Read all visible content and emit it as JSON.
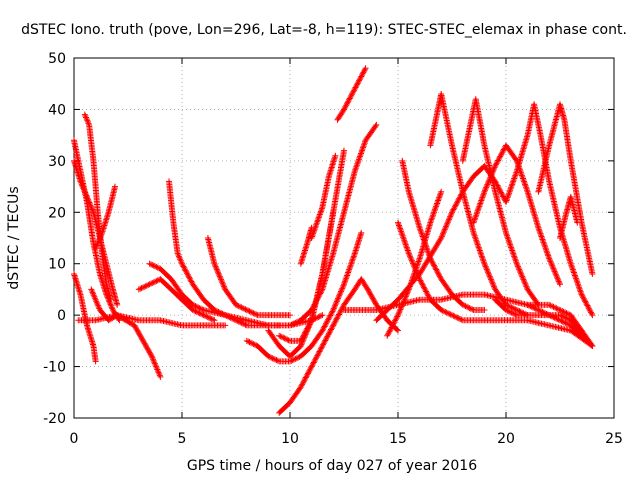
{
  "chart_data": {
    "type": "scatter",
    "title": "dSTEC Iono. truth (pove, Lon=296, Lat=-8, h=119): STEC-STEC_elemax in phase cont.",
    "xlabel": "GPS time / hours of day 027 of year 2016",
    "ylabel": "dSTEC  / TECUs",
    "xlim": [
      0,
      25
    ],
    "ylim": [
      -20,
      50
    ],
    "xticks": [
      0,
      5,
      10,
      15,
      20,
      25
    ],
    "yticks": [
      -20,
      -10,
      0,
      10,
      20,
      30,
      40,
      50
    ],
    "x_tick_labels": [
      "0",
      "5",
      "10",
      "15",
      "20",
      "25"
    ],
    "y_tick_labels": [
      "-20",
      "-10",
      "0",
      "10",
      "20",
      "30",
      "40",
      "50"
    ],
    "grid": true,
    "marker": "plus",
    "color": "#ff0000",
    "series": [
      {
        "x": [
          0.0,
          0.3,
          0.6,
          0.9,
          1.2,
          1.5,
          1.8,
          2.1
        ],
        "y": [
          34,
          28,
          22,
          14,
          8,
          4,
          1,
          -1
        ]
      },
      {
        "x": [
          0.0,
          0.3,
          0.6,
          0.9,
          1.0
        ],
        "y": [
          8,
          4,
          -2,
          -6,
          -9
        ]
      },
      {
        "x": [
          0.5,
          0.7,
          0.9,
          1.1,
          1.3,
          1.5,
          1.7
        ],
        "y": [
          39,
          37,
          30,
          20,
          12,
          6,
          3
        ]
      },
      {
        "x": [
          0.0,
          0.3,
          0.6,
          0.9,
          1.2,
          1.5,
          1.8,
          2.0
        ],
        "y": [
          30,
          26,
          23,
          20,
          15,
          10,
          5,
          2
        ]
      },
      {
        "x": [
          1.0,
          1.3,
          1.6,
          1.9
        ],
        "y": [
          13,
          16,
          20,
          25
        ]
      },
      {
        "x": [
          0.8,
          1.2,
          1.6,
          2.0,
          2.4,
          2.8,
          3.2,
          3.6,
          4.0
        ],
        "y": [
          5,
          1,
          -1,
          0,
          -1,
          -2,
          -5,
          -8,
          -12
        ]
      },
      {
        "x": [
          0.2,
          1.0,
          2.0,
          3.0,
          4.0,
          5.0,
          6.0,
          7.0
        ],
        "y": [
          -1,
          -1,
          0,
          -1,
          -1,
          -2,
          -2,
          -2
        ]
      },
      {
        "x": [
          3.0,
          3.5,
          4.0,
          4.5,
          5.0,
          5.5,
          6.0,
          6.5
        ],
        "y": [
          5,
          6,
          7,
          5,
          3,
          1,
          0,
          -1
        ]
      },
      {
        "x": [
          3.5,
          4.0,
          4.5,
          5.0,
          5.5,
          6.0,
          7.0,
          8.0,
          9.0,
          10.0,
          11.0,
          11.5
        ],
        "y": [
          10,
          9,
          7,
          4,
          2,
          1,
          0,
          -1,
          -2,
          -2,
          -1,
          0
        ]
      },
      {
        "x": [
          4.4,
          4.6,
          4.8,
          5.0,
          5.5,
          6.0,
          6.5,
          7.0,
          7.5,
          8.0,
          8.5,
          9.0,
          9.5
        ],
        "y": [
          26,
          18,
          12,
          10,
          6,
          3,
          1,
          0,
          -1,
          -2,
          -2,
          -2,
          -2
        ]
      },
      {
        "x": [
          6.2,
          6.5,
          7.0,
          7.5,
          8.0,
          8.5,
          9.0,
          9.5,
          10.0
        ],
        "y": [
          15,
          10,
          5,
          2,
          1,
          0,
          0,
          0,
          0
        ]
      },
      {
        "x": [
          8.0,
          8.5,
          9.0,
          9.5,
          10.0,
          10.5,
          11.0,
          11.5,
          12.0,
          12.5,
          13.0,
          13.3
        ],
        "y": [
          -5,
          -6,
          -8,
          -9,
          -9,
          -8,
          -6,
          -3,
          1,
          6,
          12,
          16
        ]
      },
      {
        "x": [
          9.5,
          10.0,
          10.5,
          11.0,
          11.5,
          12.0,
          12.5,
          13.0,
          13.3,
          13.6,
          14.0,
          14.5,
          15.0
        ],
        "y": [
          -19,
          -17,
          -14,
          -10,
          -6,
          -2,
          2,
          5,
          7,
          5,
          2,
          -1,
          -3
        ]
      },
      {
        "x": [
          9.0,
          9.5,
          10.0,
          10.5,
          11.0,
          11.5,
          12.0
        ],
        "y": [
          -3,
          -6,
          -8,
          -6,
          -1,
          8,
          20
        ]
      },
      {
        "x": [
          9.5,
          10.0,
          10.5,
          11.0,
          11.5,
          12.0,
          12.5
        ],
        "y": [
          -4,
          -5,
          -5,
          -1,
          8,
          20,
          32
        ]
      },
      {
        "x": [
          10.0,
          10.5,
          11.0,
          11.5,
          12.0,
          12.5,
          13.0,
          13.5,
          14.0
        ],
        "y": [
          -2,
          -1,
          1,
          5,
          12,
          20,
          28,
          34,
          37
        ]
      },
      {
        "x": [
          10.5,
          10.8,
          11.0
        ],
        "y": [
          10,
          14,
          17
        ]
      },
      {
        "x": [
          11.0,
          11.5,
          11.8,
          12.1
        ],
        "y": [
          15,
          21,
          27,
          31
        ]
      },
      {
        "x": [
          12.2,
          12.5,
          13.0,
          13.5
        ],
        "y": [
          38,
          40,
          44,
          48
        ]
      },
      {
        "x": [
          12.5,
          13.0,
          13.5,
          14.0,
          15.0,
          16.0,
          17.0,
          18.0,
          19.0,
          20.0,
          21.0,
          22.0,
          23.0,
          23.5
        ],
        "y": [
          1,
          1,
          1,
          1,
          2,
          3,
          3,
          4,
          4,
          3,
          2,
          2,
          0,
          -3
        ]
      },
      {
        "x": [
          15.0,
          15.5,
          16.0,
          16.5,
          17.0,
          17.5,
          18.0,
          18.5,
          19.0,
          19.5,
          20.0,
          21.0,
          22.0,
          23.0,
          24.0
        ],
        "y": [
          18,
          12,
          7,
          3,
          1,
          0,
          -1,
          -1,
          -1,
          -1,
          -1,
          -1,
          -2,
          -3,
          -6
        ]
      },
      {
        "x": [
          15.2,
          15.5,
          16.0,
          16.5,
          17.0,
          17.5,
          18.0,
          18.5,
          19.0
        ],
        "y": [
          30,
          24,
          17,
          11,
          7,
          4,
          2,
          1,
          1
        ]
      },
      {
        "x": [
          14.0,
          15.0,
          16.0,
          17.0,
          17.5,
          18.0,
          18.5,
          19.0,
          19.5,
          20.0
        ],
        "y": [
          -1,
          3,
          8,
          15,
          20,
          24,
          27,
          29,
          26,
          22
        ]
      },
      {
        "x": [
          14.5,
          15.0,
          15.5,
          16.0,
          16.5,
          17.0
        ],
        "y": [
          -4,
          0,
          5,
          11,
          18,
          24
        ]
      },
      {
        "x": [
          16.5,
          16.8,
          17.0,
          17.5,
          18.0,
          18.5,
          19.0,
          19.5,
          20.0,
          20.5,
          21.0
        ],
        "y": [
          33,
          39,
          43,
          33,
          24,
          16,
          10,
          5,
          2,
          1,
          0
        ]
      },
      {
        "x": [
          18.0,
          18.3,
          18.6,
          19.0,
          19.5,
          20.0,
          20.5,
          21.0,
          21.5
        ],
        "y": [
          30,
          36,
          42,
          33,
          24,
          16,
          10,
          5,
          2
        ]
      },
      {
        "x": [
          18.5,
          19.0,
          19.5,
          20.0,
          20.5,
          21.0,
          21.5,
          22.0,
          22.5
        ],
        "y": [
          18,
          24,
          29,
          33,
          30,
          24,
          17,
          11,
          6
        ]
      },
      {
        "x": [
          20.0,
          20.5,
          21.0,
          21.3,
          21.6,
          22.0,
          22.5,
          23.0,
          23.5,
          24.0
        ],
        "y": [
          22,
          28,
          35,
          41,
          35,
          26,
          17,
          10,
          4,
          0
        ]
      },
      {
        "x": [
          21.5,
          22.0,
          22.5,
          22.7,
          23.0,
          23.5,
          24.0
        ],
        "y": [
          24,
          33,
          41,
          38,
          30,
          18,
          8
        ]
      },
      {
        "x": [
          19.5,
          20.0,
          20.5,
          21.0,
          21.5,
          22.0,
          22.5,
          23.0,
          23.5,
          24.0
        ],
        "y": [
          3,
          1,
          0,
          0,
          0,
          0,
          0,
          -1,
          -3,
          -6
        ]
      },
      {
        "x": [
          22.5,
          22.8,
          23.0,
          23.3
        ],
        "y": [
          15,
          20,
          23,
          18
        ]
      },
      {
        "x": [
          21.0,
          21.5,
          22.0,
          22.5,
          23.0,
          23.5,
          24.0
        ],
        "y": [
          2,
          1,
          0,
          -1,
          -2,
          -4,
          -6
        ]
      }
    ]
  }
}
